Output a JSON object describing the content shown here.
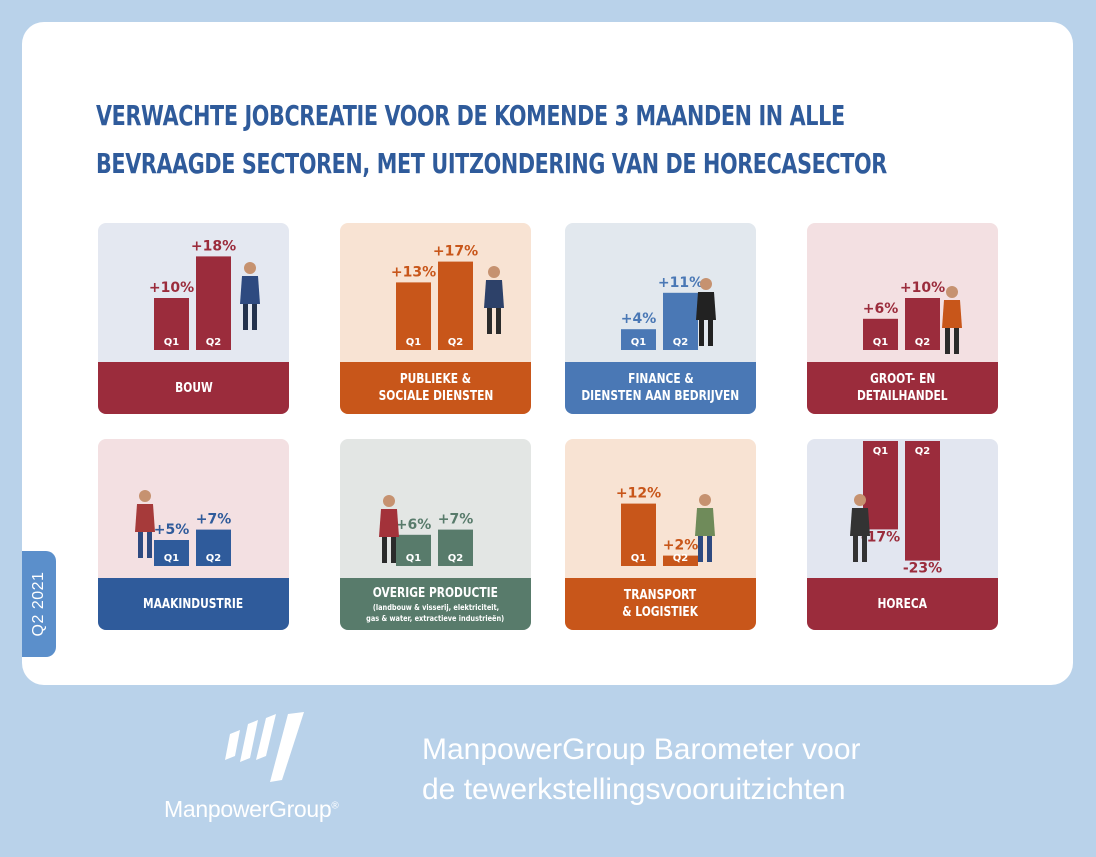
{
  "title_lines": [
    "Verwachte jobcreatie voor de komende 3 maanden in alle",
    "bevraagde sectoren, met uitzondering van de horecasector"
  ],
  "quarter_tab": "Q2 2021",
  "brand": {
    "name": "ManpowerGroup",
    "name_suffix": "®",
    "tagline": [
      "ManpowerGroup Barometer voor",
      "de tewerkstellingsvooruitzichten"
    ]
  },
  "colors": {
    "blue": "#2f5b9b",
    "red": "#9b2c3c",
    "orange": "#c8561a",
    "mid_blue": "#4a78b5",
    "green": "#587b6b"
  },
  "chart_data": [
    {
      "type": "bar",
      "sector": "bouw",
      "label_lines": [
        "Bouw"
      ],
      "categories": [
        "Q1",
        "Q2"
      ],
      "values": [
        10,
        18
      ],
      "value_labels": [
        "+10%",
        "+18%"
      ],
      "bar_color": "#9b2c3c",
      "label_color": "#9b2c3c",
      "tile_bg": "#e4e8f1",
      "band_color": "#9b2c3c"
    },
    {
      "type": "bar",
      "sector": "publiek",
      "label_lines": [
        "Publieke &",
        "sociale diensten"
      ],
      "categories": [
        "Q1",
        "Q2"
      ],
      "values": [
        13,
        17
      ],
      "value_labels": [
        "+13%",
        "+17%"
      ],
      "bar_color": "#c8561a",
      "label_color": "#c8561a",
      "tile_bg": "#f8e3d3",
      "band_color": "#c8561a"
    },
    {
      "type": "bar",
      "sector": "finance",
      "label_lines": [
        "Finance &",
        "diensten aan bedrijven"
      ],
      "categories": [
        "Q1",
        "Q2"
      ],
      "values": [
        4,
        11
      ],
      "value_labels": [
        "+4%",
        "+11%"
      ],
      "bar_color": "#4a78b5",
      "label_color": "#4a78b5",
      "tile_bg": "#e2e8ee",
      "band_color": "#4a78b5"
    },
    {
      "type": "bar",
      "sector": "handel",
      "label_lines": [
        "Groot- en",
        "detailhandel"
      ],
      "categories": [
        "Q1",
        "Q2"
      ],
      "values": [
        6,
        10
      ],
      "value_labels": [
        "+6%",
        "+10%"
      ],
      "bar_color": "#9b2c3c",
      "label_color": "#9b2c3c",
      "tile_bg": "#f3e0e2",
      "band_color": "#9b2c3c"
    },
    {
      "type": "bar",
      "sector": "maak",
      "label_lines": [
        "Maakindustrie"
      ],
      "categories": [
        "Q1",
        "Q2"
      ],
      "values": [
        5,
        7
      ],
      "value_labels": [
        "+5%",
        "+7%"
      ],
      "bar_color": "#2f5b9b",
      "label_color": "#2f5b9b",
      "tile_bg": "#f3e0e2",
      "band_color": "#2f5b9b"
    },
    {
      "type": "bar",
      "sector": "overig",
      "label_lines": [
        "Overige productie"
      ],
      "sub_lines": [
        "(landbouw & visserij, elektriciteit,",
        "gas & water, extractieve industrieën)"
      ],
      "categories": [
        "Q1",
        "Q2"
      ],
      "values": [
        6,
        7
      ],
      "value_labels": [
        "+6%",
        "+7%"
      ],
      "bar_color": "#587b6b",
      "label_color": "#587b6b",
      "tile_bg": "#e3e6e4",
      "band_color": "#587b6b"
    },
    {
      "type": "bar",
      "sector": "transport",
      "label_lines": [
        "Transport",
        "& logistiek"
      ],
      "categories": [
        "Q1",
        "Q2"
      ],
      "values": [
        12,
        2
      ],
      "value_labels": [
        "+12%",
        "+2%"
      ],
      "bar_color": "#c8561a",
      "label_color": "#c8561a",
      "tile_bg": "#f8e3d3",
      "band_color": "#c8561a"
    },
    {
      "type": "bar",
      "sector": "horeca",
      "label_lines": [
        "Horeca"
      ],
      "categories": [
        "Q1",
        "Q2"
      ],
      "values": [
        -17,
        -23
      ],
      "value_labels": [
        "-17%",
        "-23%"
      ],
      "bar_color": "#9b2c3c",
      "label_color": "#9b2c3c",
      "tile_bg": "#e2e6f0",
      "band_color": "#9b2c3c"
    }
  ]
}
